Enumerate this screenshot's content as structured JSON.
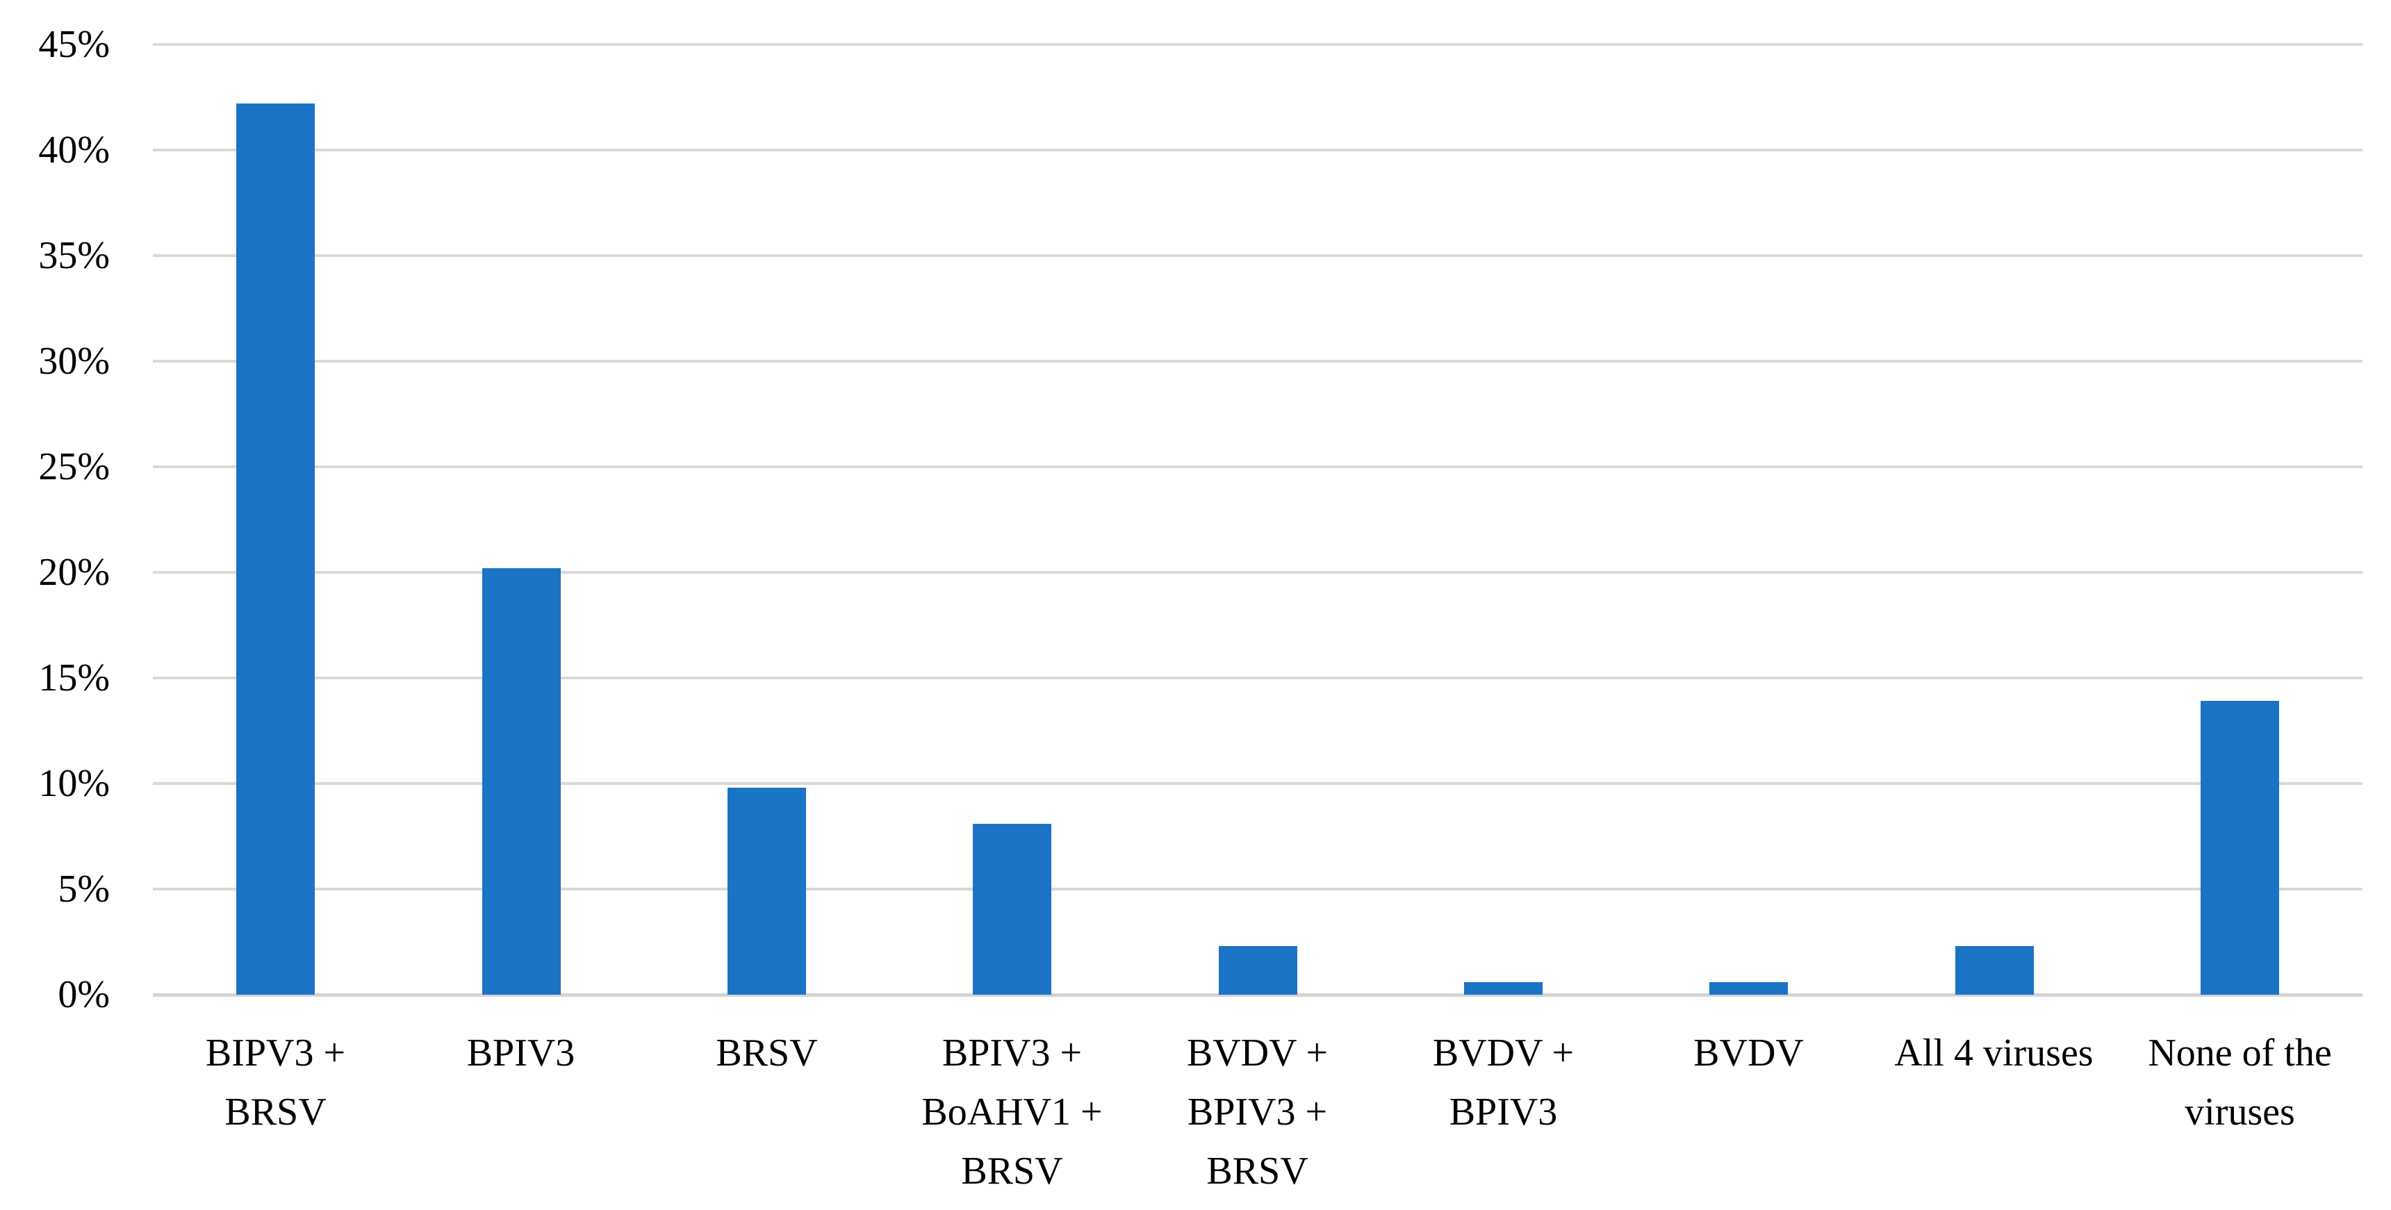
{
  "chart_data": {
    "type": "bar",
    "title": "",
    "xlabel": "",
    "ylabel": "",
    "categories": [
      "BIPV3 +\nBRSV",
      "BPIV3",
      "BRSV",
      "BPIV3 +\nBoAHV1 +\nBRSV",
      "BVDV +\nBPIV3 +\nBRSV",
      "BVDV +\nBPIV3",
      "BVDV",
      "All 4 viruses",
      "None of the\nviruses"
    ],
    "values": [
      42.2,
      20.2,
      9.8,
      8.1,
      2.3,
      0.6,
      0.6,
      2.3,
      13.9
    ],
    "ylim": [
      0,
      45
    ],
    "ytick_step": 5,
    "ytick_labels": [
      "0%",
      "5%",
      "10%",
      "15%",
      "20%",
      "25%",
      "30%",
      "35%",
      "40%",
      "45%"
    ],
    "grid": true,
    "legend": false,
    "bar_color": "#1B73C6",
    "gridline_color": "#D9D9D9",
    "axisline_color": "#D3D3D3",
    "text_color": "#000000"
  }
}
